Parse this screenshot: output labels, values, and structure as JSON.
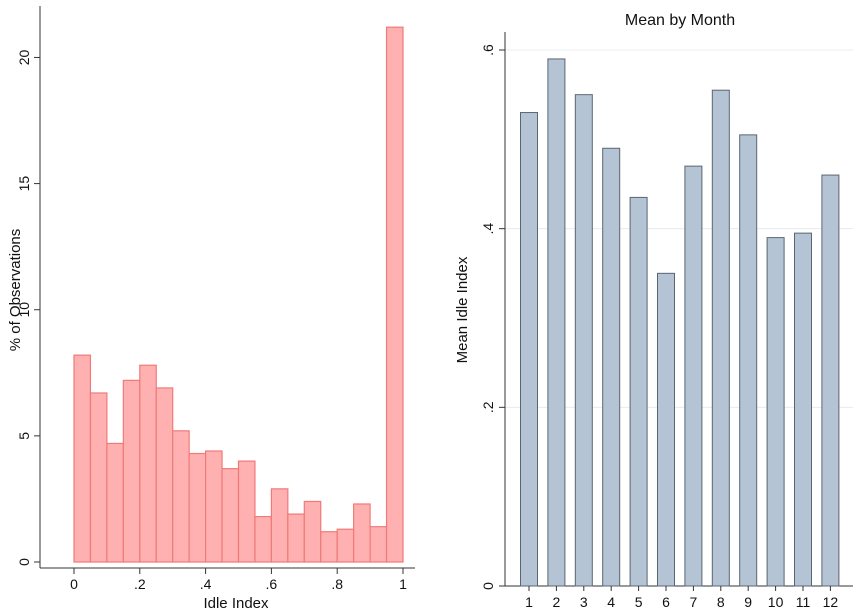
{
  "chart_data": [
    {
      "type": "bar",
      "subtype": "histogram",
      "title": "",
      "xlabel": "Idle Index",
      "ylabel": "% of Observations",
      "bin_width": 0.05,
      "bin_starts": [
        0,
        0.05,
        0.1,
        0.15,
        0.2,
        0.25,
        0.3,
        0.35,
        0.4,
        0.45,
        0.5,
        0.55,
        0.6,
        0.65,
        0.7,
        0.75,
        0.8,
        0.85,
        0.9,
        0.95
      ],
      "values": [
        8.2,
        6.7,
        4.7,
        7.2,
        7.8,
        6.9,
        5.2,
        4.3,
        4.4,
        3.7,
        4.0,
        1.8,
        2.9,
        1.9,
        2.4,
        1.2,
        1.3,
        2.3,
        1.4,
        21.2
      ],
      "xlim": [
        0,
        1
      ],
      "ylim": [
        0,
        22
      ],
      "x_ticks": [
        0,
        0.2,
        0.4,
        0.6,
        0.8,
        1
      ],
      "x_tick_labels": [
        "0",
        ".2",
        ".4",
        ".6",
        ".8",
        "1"
      ],
      "y_ticks": [
        0,
        5,
        10,
        15,
        20
      ],
      "y_tick_labels": [
        "0",
        "5",
        "10",
        "15",
        "20"
      ],
      "bar_fill": "#ffb0b0",
      "bar_stroke": "#f07a7a",
      "grid": false
    },
    {
      "type": "bar",
      "title": "Mean by Month",
      "xlabel": "",
      "ylabel": "Mean Idle Index",
      "categories": [
        "1",
        "2",
        "3",
        "4",
        "5",
        "6",
        "7",
        "8",
        "9",
        "10",
        "11",
        "12"
      ],
      "values": [
        0.53,
        0.59,
        0.55,
        0.49,
        0.435,
        0.35,
        0.47,
        0.555,
        0.505,
        0.39,
        0.395,
        0.46
      ],
      "ylim": [
        0,
        0.6
      ],
      "y_ticks": [
        0,
        0.2,
        0.4,
        0.6
      ],
      "y_tick_labels": [
        "0",
        ".2",
        ".4",
        ".6"
      ],
      "bar_fill": "#b5c4d4",
      "bar_stroke": "#5a6572",
      "grid": true,
      "grid_color": "#e8ecef"
    }
  ]
}
